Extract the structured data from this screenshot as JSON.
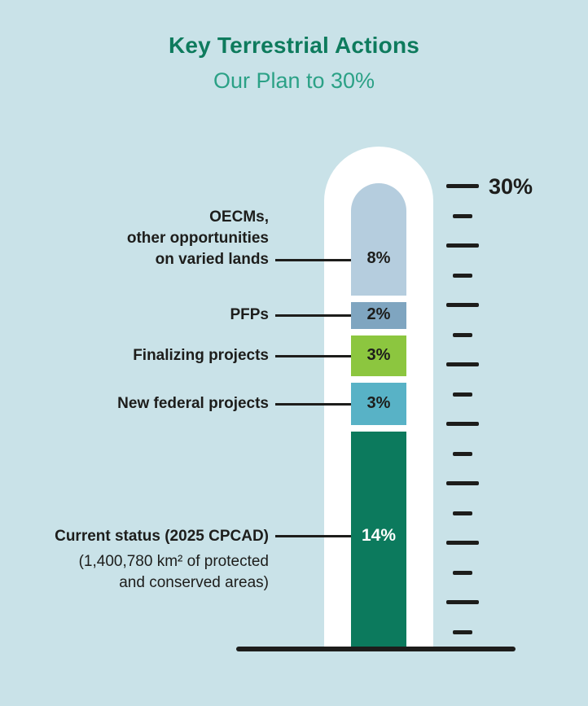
{
  "header": {
    "title": "Key Terrestrial Actions",
    "subtitle": "Our Plan to 30%"
  },
  "thermometer": {
    "scale": {
      "max_label": "30%",
      "max_percent": 30,
      "tick_count": 16
    }
  },
  "chart_data": {
    "type": "bar",
    "orientation": "vertical-stacked-thermometer",
    "title": "Key Terrestrial Actions",
    "subtitle": "Our Plan to 30%",
    "unit": "percent",
    "target_total": 30,
    "axis": {
      "max_label": "30%",
      "max": 30,
      "min": 0
    },
    "segments": [
      {
        "name": "oecms",
        "label_lines": [
          "OECMs,",
          "other opportunities",
          "on varied lands"
        ],
        "value": 8,
        "value_label": "8%",
        "color": "#b5cdde"
      },
      {
        "name": "pfps",
        "label_lines": [
          "PFPs"
        ],
        "value": 2,
        "value_label": "2%",
        "color": "#7fa5c0"
      },
      {
        "name": "finalizing-projects",
        "label_lines": [
          "Finalizing projects"
        ],
        "value": 3,
        "value_label": "3%",
        "color": "#8cc63f"
      },
      {
        "name": "new-federal-projects",
        "label_lines": [
          "New federal projects"
        ],
        "value": 3,
        "value_label": "3%",
        "color": "#58b2c6"
      },
      {
        "name": "current-status",
        "label_lines": [
          "Current status (2025 CPCAD)"
        ],
        "sublabel_lines": [
          "(1,400,780 km² of protected",
          "and conserved areas)"
        ],
        "value": 14,
        "value_label": "14%",
        "color": "#0c7a5d"
      }
    ]
  },
  "colors": {
    "background": "#c9e2e8",
    "title": "#0e7b5d",
    "subtitle": "#2ba186",
    "text": "#1d1d1b",
    "tube": "#ffffff",
    "value_on_dark": "#ffffff"
  }
}
